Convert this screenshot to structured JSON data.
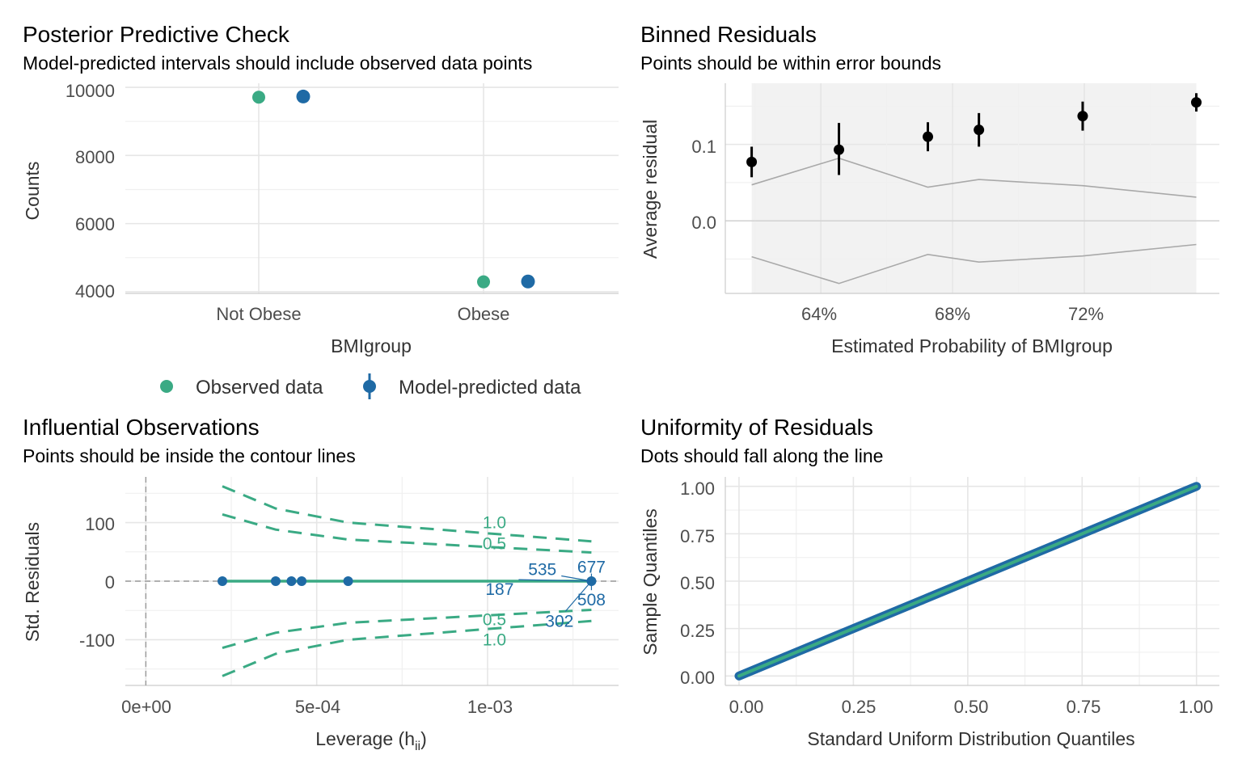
{
  "colors": {
    "observed": "#3aaa84",
    "predicted": "#1f6aa5",
    "points": "#000000",
    "bounds": "#a9a9a9",
    "band_fill": "#f2f2f2",
    "contour": "#3aaa84",
    "labels": "#1f6aa5",
    "qq_line": "#3aaa84",
    "qq_points": "#1f6aa5"
  },
  "chart_data": [
    {
      "type": "scatter",
      "title": "Posterior Predictive Check",
      "subtitle": "Model-predicted intervals should include observed data points",
      "xlabel": "BMIgroup",
      "ylabel": "Counts",
      "categories": [
        "Not Obese",
        "Obese"
      ],
      "yticks": [
        "4000",
        "6000",
        "8000",
        "10000"
      ],
      "ylim": [
        3950,
        10120
      ],
      "series": [
        {
          "name": "Observed data",
          "values": [
            9710,
            4290
          ]
        },
        {
          "name": "Model-predicted data",
          "values": [
            9730,
            4300
          ]
        }
      ],
      "legend": {
        "position": "bottom",
        "observed_label": "Observed data",
        "predicted_label": "Model-predicted data"
      },
      "grid": true
    },
    {
      "type": "scatter",
      "title": "Binned Residuals",
      "subtitle": "Points should be within error bounds",
      "xlabel": "Estimated Probability of BMIgroup",
      "ylabel": "Average residual",
      "xticks": [
        "64%",
        "68%",
        "72%"
      ],
      "xtick_values": [
        0.64,
        0.68,
        0.72
      ],
      "yticks": [
        "0.0",
        "0.1"
      ],
      "ytick_values": [
        0.0,
        0.1
      ],
      "xlim": [
        0.611,
        0.761
      ],
      "ylim": [
        -0.095,
        0.18
      ],
      "points": [
        {
          "x": 0.619,
          "y": 0.077,
          "lo": 0.057,
          "hi": 0.097
        },
        {
          "x": 0.6455,
          "y": 0.093,
          "lo": 0.06,
          "hi": 0.128
        },
        {
          "x": 0.6725,
          "y": 0.11,
          "lo": 0.091,
          "hi": 0.129
        },
        {
          "x": 0.688,
          "y": 0.119,
          "lo": 0.097,
          "hi": 0.141
        },
        {
          "x": 0.7195,
          "y": 0.137,
          "lo": 0.118,
          "hi": 0.156
        },
        {
          "x": 0.754,
          "y": 0.155,
          "lo": 0.143,
          "hi": 0.167
        }
      ],
      "upper_bound": [
        [
          0.619,
          0.047
        ],
        [
          0.6455,
          0.082
        ],
        [
          0.6725,
          0.044
        ],
        [
          0.688,
          0.054
        ],
        [
          0.7195,
          0.046
        ],
        [
          0.754,
          0.031
        ]
      ],
      "lower_bound": [
        [
          0.619,
          -0.047
        ],
        [
          0.6455,
          -0.082
        ],
        [
          0.6725,
          -0.044
        ],
        [
          0.688,
          -0.054
        ],
        [
          0.7195,
          -0.046
        ],
        [
          0.754,
          -0.031
        ]
      ],
      "grid": true
    },
    {
      "type": "scatter",
      "title": "Influential Observations",
      "subtitle": "Points should be inside the contour lines",
      "xlabel": "Leverage (h",
      "xlabel_sub": "ii",
      "xlabel_close": ")",
      "ylabel": "Std. Residuals",
      "xticks": [
        "0e+00",
        "5e-04",
        "1e-03"
      ],
      "xtick_values": [
        0,
        0.0005,
        0.001
      ],
      "yticks": [
        "-100",
        "0",
        "100"
      ],
      "ytick_values": [
        -100,
        0,
        100
      ],
      "xlim": [
        -6e-05,
        0.0013834
      ],
      "ylim": [
        -178,
        178
      ],
      "points": [
        {
          "x": 0.000224,
          "y": 0
        },
        {
          "x": 0.00038,
          "y": 0
        },
        {
          "x": 0.000426,
          "y": 0
        },
        {
          "x": 0.000456,
          "y": 0
        },
        {
          "x": 0.000592,
          "y": 0
        },
        {
          "x": 0.001304,
          "y": 0
        }
      ],
      "contours": [
        {
          "label": "1.0",
          "sign": 1,
          "points": [
            [
              0.000224,
              162
            ],
            [
              0.00038,
              124
            ],
            [
              0.000592,
              100
            ],
            [
              0.001304,
              68
            ]
          ]
        },
        {
          "label": "0.5",
          "sign": 1,
          "points": [
            [
              0.000224,
              114
            ],
            [
              0.00038,
              88
            ],
            [
              0.000592,
              71
            ],
            [
              0.001304,
              49
            ]
          ]
        },
        {
          "label": "0.5",
          "sign": -1,
          "points": [
            [
              0.000224,
              -114
            ],
            [
              0.00038,
              -88
            ],
            [
              0.000592,
              -71
            ],
            [
              0.001304,
              -49
            ]
          ]
        },
        {
          "label": "1.0",
          "sign": -1,
          "points": [
            [
              0.000224,
              -162
            ],
            [
              0.00038,
              -124
            ],
            [
              0.000592,
              -100
            ],
            [
              0.001304,
              -68
            ]
          ]
        }
      ],
      "point_labels": [
        {
          "text": "677",
          "x": 0.001304,
          "y": 24
        },
        {
          "text": "535",
          "x": 0.001145,
          "y": 20
        },
        {
          "text": "187",
          "x": 0.00102,
          "y": -14
        },
        {
          "text": "508",
          "x": 0.001304,
          "y": -32
        },
        {
          "text": "302",
          "x": 0.001157,
          "y": -68
        }
      ],
      "grid": true
    },
    {
      "type": "line",
      "title": "Uniformity of Residuals",
      "subtitle": "Dots should fall along the line",
      "xlabel": "Standard Uniform Distribution Quantiles",
      "ylabel": "Sample Quantiles",
      "xticks": [
        "0.00",
        "0.25",
        "0.50",
        "0.75",
        "1.00"
      ],
      "yticks": [
        "0.00",
        "0.25",
        "0.50",
        "0.75",
        "1.00"
      ],
      "tick_values": [
        0,
        0.25,
        0.5,
        0.75,
        1
      ],
      "xlim": [
        -0.03,
        1.05
      ],
      "ylim": [
        -0.05,
        1.05
      ],
      "grid": true
    }
  ]
}
